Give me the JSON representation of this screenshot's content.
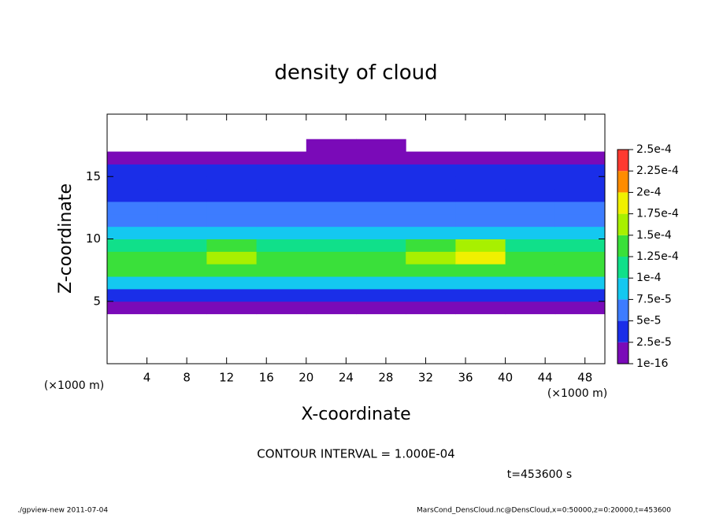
{
  "chart_data": {
    "type": "contourf",
    "title": "density of cloud",
    "x_label": "X-coordinate",
    "y_label": "Z-coordinate",
    "x_unit": "(×1000 m)",
    "y_unit": "(×1000 m)",
    "xlim": [
      0,
      50
    ],
    "ylim": [
      0,
      20
    ],
    "xticks": [
      4,
      8,
      12,
      16,
      20,
      24,
      28,
      32,
      36,
      40,
      44,
      48
    ],
    "yticks": [
      5,
      10,
      15
    ],
    "x": [
      2.5,
      7.5,
      12.5,
      17.5,
      22.5,
      27.5,
      32.5,
      37.5,
      42.5,
      47.5
    ],
    "y": [
      0.5,
      1.5,
      2.5,
      3.5,
      4.5,
      5.5,
      6.5,
      7.5,
      8.5,
      9.5,
      10.5,
      11.5,
      12.5,
      13.5,
      14.5,
      15.5,
      16.5,
      17.5,
      18.5,
      19.5
    ],
    "z": [
      [
        0,
        0,
        0,
        0,
        0,
        0,
        0,
        0,
        0,
        0
      ],
      [
        0,
        0,
        0,
        0,
        0,
        0,
        0,
        0,
        0,
        0
      ],
      [
        0,
        0,
        0,
        0,
        0,
        0,
        0,
        0,
        0,
        0
      ],
      [
        0,
        0,
        0,
        0,
        0,
        0,
        0,
        0,
        0,
        0
      ],
      [
        1e-05,
        1e-05,
        1e-05,
        1e-05,
        1e-05,
        1e-05,
        1e-05,
        1e-05,
        1e-05,
        1e-05
      ],
      [
        4e-05,
        4e-05,
        4e-05,
        3e-05,
        3e-05,
        4e-05,
        4e-05,
        4e-05,
        4e-05,
        4e-05
      ],
      [
        9e-05,
        9e-05,
        9e-05,
        8e-05,
        8e-05,
        9e-05,
        9e-05,
        9e-05,
        9e-05,
        9e-05
      ],
      [
        0.00013,
        0.00013,
        0.00013,
        0.00013,
        0.00013,
        0.00013,
        0.00014,
        0.00014,
        0.00013,
        0.00013
      ],
      [
        0.00014,
        0.00014,
        0.00015,
        0.00014,
        0.00014,
        0.00014,
        0.00016,
        0.00018,
        0.00014,
        0.00014
      ],
      [
        0.00012,
        0.00012,
        0.00013,
        0.00012,
        0.00012,
        0.00012,
        0.00013,
        0.00015,
        0.00012,
        0.00012
      ],
      [
        8e-05,
        8e-05,
        8e-05,
        9e-05,
        9e-05,
        9e-05,
        9e-05,
        8e-05,
        8e-05,
        8e-05
      ],
      [
        6e-05,
        6e-05,
        6e-05,
        6e-05,
        6e-05,
        6e-05,
        6e-05,
        6e-05,
        6e-05,
        6e-05
      ],
      [
        5.5e-05,
        5.5e-05,
        5.5e-05,
        5.5e-05,
        5.5e-05,
        5.5e-05,
        5.5e-05,
        5.5e-05,
        5.5e-05,
        5.5e-05
      ],
      [
        4e-05,
        4e-05,
        4e-05,
        4e-05,
        4e-05,
        4e-05,
        4e-05,
        4e-05,
        4e-05,
        4e-05
      ],
      [
        3.5e-05,
        3.5e-05,
        3.5e-05,
        3.5e-05,
        3.5e-05,
        3.5e-05,
        3.5e-05,
        3.5e-05,
        3.5e-05,
        3.5e-05
      ],
      [
        3e-05,
        3e-05,
        3e-05,
        3e-05,
        3e-05,
        3e-05,
        3e-05,
        3e-05,
        3e-05,
        3e-05
      ],
      [
        1e-05,
        1e-05,
        1e-05,
        1e-05,
        1e-05,
        1e-05,
        1e-05,
        1e-05,
        1e-05,
        1e-05
      ],
      [
        0,
        0,
        0,
        0,
        1e-05,
        1e-05,
        0,
        0,
        0,
        0
      ],
      [
        0,
        0,
        0,
        0,
        0,
        0,
        0,
        0,
        0,
        0
      ],
      [
        0,
        0,
        0,
        0,
        0,
        0,
        0,
        0,
        0,
        0
      ]
    ],
    "colorbar": {
      "levels": [
        {
          "value": 1e-16,
          "label": "1e-16"
        },
        {
          "value": 2.5e-05,
          "label": "2.5e-5"
        },
        {
          "value": 5e-05,
          "label": "5e-5"
        },
        {
          "value": 7.5e-05,
          "label": "7.5e-5"
        },
        {
          "value": 0.0001,
          "label": "1e-4"
        },
        {
          "value": 0.000125,
          "label": "1.25e-4"
        },
        {
          "value": 0.00015,
          "label": "1.5e-4"
        },
        {
          "value": 0.000175,
          "label": "1.75e-4"
        },
        {
          "value": 0.0002,
          "label": "2e-4"
        },
        {
          "value": 0.000225,
          "label": "2.25e-4"
        },
        {
          "value": 0.00025,
          "label": "2.5e-4"
        }
      ],
      "colors": [
        "#7a0ab8",
        "#1a2ee8",
        "#3d7cff",
        "#14c8f0",
        "#10e08a",
        "#3ae03a",
        "#a8f000",
        "#f0f000",
        "#ff8c00",
        "#ff3a30"
      ]
    },
    "contour_note": "CONTOUR INTERVAL = 1.000E-04",
    "time_label": "t=453600 s",
    "footer_left": "./gpview-new  2011-07-04",
    "footer_right": "MarsCond_DensCloud.nc@DensCloud,x=0:50000,z=0:20000,t=453600"
  }
}
